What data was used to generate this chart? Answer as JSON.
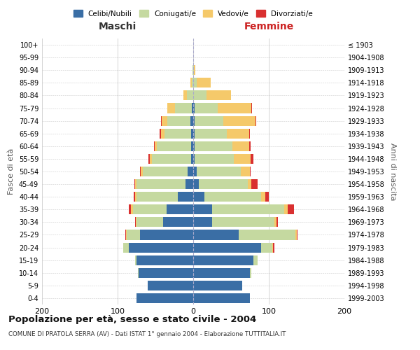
{
  "age_groups": [
    "0-4",
    "5-9",
    "10-14",
    "15-19",
    "20-24",
    "25-29",
    "30-34",
    "35-39",
    "40-44",
    "45-49",
    "50-54",
    "55-59",
    "60-64",
    "65-69",
    "70-74",
    "75-79",
    "80-84",
    "85-89",
    "90-94",
    "95-99",
    "100+"
  ],
  "birth_years": [
    "1999-2003",
    "1994-1998",
    "1989-1993",
    "1984-1988",
    "1979-1983",
    "1974-1978",
    "1969-1973",
    "1964-1968",
    "1959-1963",
    "1954-1958",
    "1949-1953",
    "1944-1948",
    "1939-1943",
    "1934-1938",
    "1929-1933",
    "1924-1928",
    "1919-1923",
    "1914-1918",
    "1909-1913",
    "1904-1908",
    "≤ 1903"
  ],
  "colors": {
    "celibe": "#3a6ea5",
    "coniugato": "#c5d9a0",
    "vedovo": "#f5c96a",
    "divorziato": "#d93030"
  },
  "maschi": {
    "celibe": [
      75,
      60,
      72,
      75,
      85,
      70,
      40,
      35,
      20,
      10,
      7,
      3,
      3,
      3,
      4,
      2,
      0,
      0,
      0,
      0,
      0
    ],
    "coniugato": [
      0,
      0,
      1,
      2,
      8,
      18,
      35,
      45,
      55,
      65,
      60,
      52,
      45,
      35,
      30,
      22,
      8,
      2,
      1,
      0,
      0
    ],
    "vedovo": [
      0,
      0,
      0,
      0,
      0,
      1,
      1,
      2,
      2,
      2,
      2,
      2,
      3,
      5,
      8,
      10,
      5,
      2,
      0,
      0,
      0
    ],
    "divorziato": [
      0,
      0,
      0,
      0,
      0,
      1,
      1,
      3,
      2,
      1,
      1,
      2,
      1,
      1,
      1,
      0,
      0,
      0,
      0,
      0,
      0
    ]
  },
  "femmine": {
    "nubile": [
      75,
      65,
      75,
      80,
      90,
      60,
      25,
      25,
      15,
      7,
      5,
      2,
      2,
      2,
      2,
      2,
      0,
      0,
      0,
      0,
      0
    ],
    "coniugata": [
      0,
      0,
      2,
      5,
      15,
      75,
      82,
      95,
      75,
      65,
      58,
      52,
      50,
      42,
      38,
      30,
      18,
      5,
      1,
      0,
      0
    ],
    "vedova": [
      0,
      0,
      0,
      0,
      1,
      2,
      3,
      5,
      5,
      5,
      12,
      22,
      22,
      30,
      42,
      45,
      32,
      18,
      2,
      0,
      0
    ],
    "divorziata": [
      0,
      0,
      0,
      0,
      1,
      1,
      2,
      8,
      5,
      8,
      1,
      4,
      2,
      1,
      1,
      1,
      0,
      0,
      0,
      0,
      0
    ]
  },
  "title": "Popolazione per età, sesso e stato civile - 2004",
  "subtitle": "COMUNE DI PRATOLA SERRA (AV) - Dati ISTAT 1° gennaio 2004 - Elaborazione TUTTITALIA.IT",
  "xlabel_maschi": "Maschi",
  "xlabel_femmine": "Femmine",
  "ylabel_left": "Fasce di età",
  "ylabel_right": "Anni di nascita",
  "xlim": 200,
  "background_color": "#ffffff",
  "grid_color": "#cccccc",
  "legend_labels": [
    "Celibi/Nubili",
    "Coniugati/e",
    "Vedovi/e",
    "Divorziati/e"
  ]
}
